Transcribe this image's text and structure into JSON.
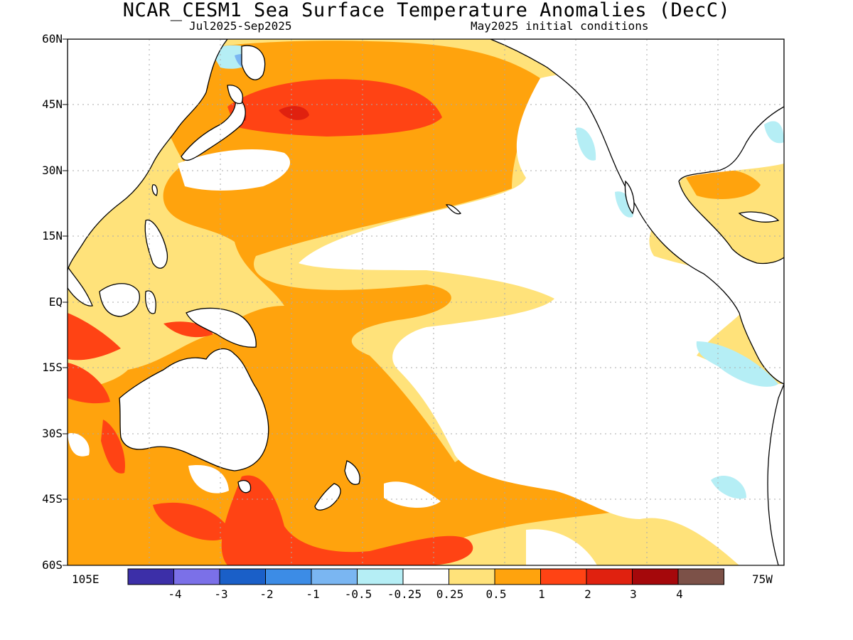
{
  "title": "NCAR_CESM1 Sea Surface Temperature Anomalies (DecC)",
  "subtitle_left": "Jul2025-Sep2025",
  "subtitle_right": "May2025 initial conditions",
  "lat_labels": [
    "60N",
    "45N",
    "30N",
    "15N",
    "EQ",
    "15S",
    "30S",
    "45S",
    "60S"
  ],
  "lon_left_label": "105E",
  "lon_right_label": "75W",
  "colorbar": {
    "colors": [
      "#3c2fa8",
      "#7b70e8",
      "#1a5fc8",
      "#3c8ce6",
      "#7ab6f2",
      "#b5eef5",
      "#ffffff",
      "#ffe27a",
      "#ffa30d",
      "#ff4314",
      "#e0210f",
      "#a5080b",
      "#7c5148"
    ],
    "tick_labels": [
      "-4",
      "-3",
      "-2",
      "-1",
      "-0.5",
      "-0.25",
      "0.25",
      "0.5",
      "1",
      "2",
      "3",
      "4"
    ]
  },
  "map_colors": {
    "ocean_light": "#ffe27a",
    "ocean_med": "#ffa30d",
    "ocean_strong": "#ff4314",
    "ocean_max": "#e0210f",
    "cool": "#b5eef5",
    "cool_mid": "#7ab6f2",
    "land": "#ffffff",
    "coast": "#000000",
    "grid": "#aaaaaa"
  }
}
